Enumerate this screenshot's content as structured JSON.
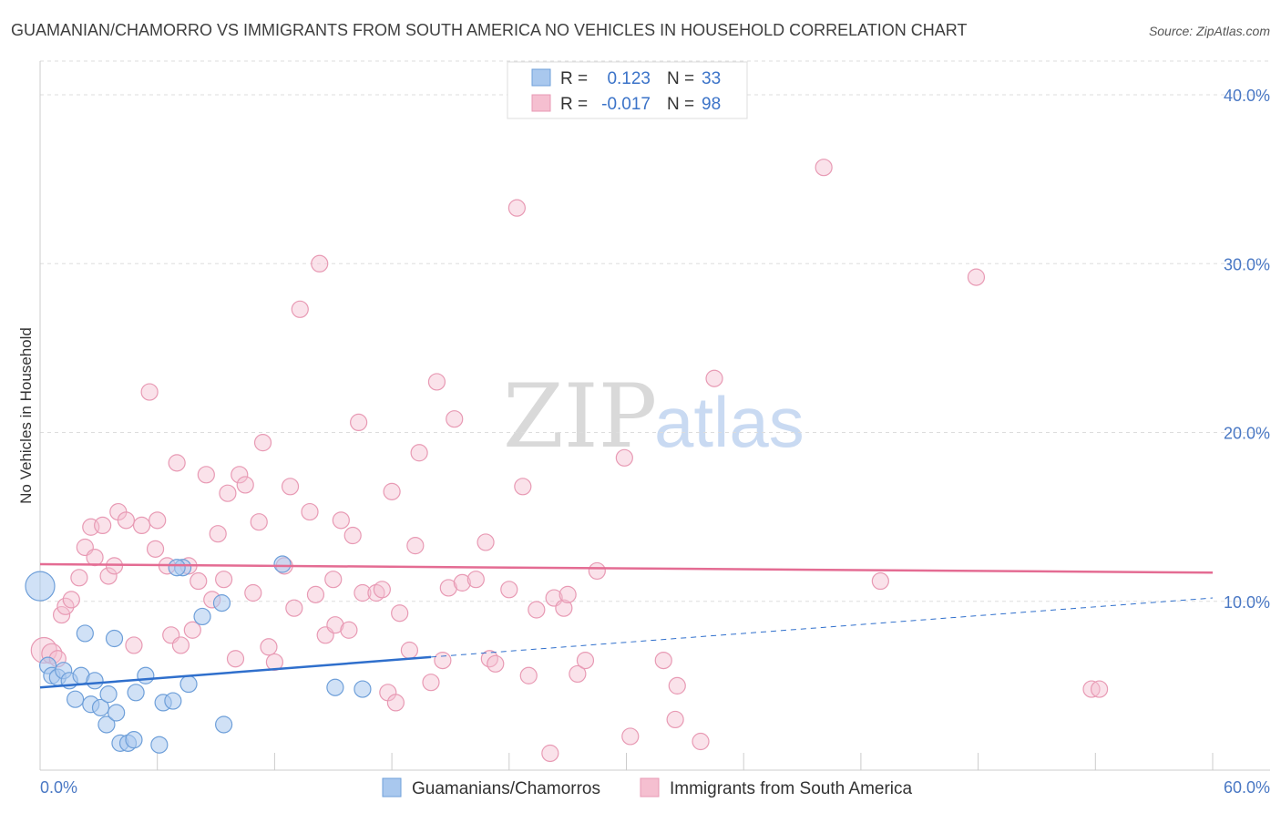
{
  "header": {
    "title": "GUAMANIAN/CHAMORRO VS IMMIGRANTS FROM SOUTH AMERICA NO VEHICLES IN HOUSEHOLD CORRELATION CHART",
    "source": "Source: ZipAtlas.com"
  },
  "watermark": {
    "zip": "ZIP",
    "atlas": "atlas"
  },
  "legend": {
    "rows": [
      {
        "r_label": "R =",
        "r_value": "0.123",
        "n_label": "N =",
        "n_value": "33"
      },
      {
        "r_label": "R =",
        "r_value": "-0.017",
        "n_label": "N =",
        "n_value": "98"
      }
    ]
  },
  "bottom_legend": {
    "series_blue": "Guamanians/Chamorros",
    "series_pink": "Immigrants from South America"
  },
  "colors": {
    "blue_fill": "#a9c8ee",
    "blue_stroke": "#6e9fd9",
    "blue_line": "#2f6fcc",
    "pink_fill": "#f5bfd0",
    "pink_stroke": "#e89ab4",
    "pink_line": "#e46c93",
    "grid": "#dddddd",
    "axis_text": "#4a78c4"
  },
  "chart_data": {
    "type": "scatter",
    "title": "GUAMANIAN/CHAMORRO VS IMMIGRANTS FROM SOUTH AMERICA NO VEHICLES IN HOUSEHOLD CORRELATION CHART",
    "xlabel": "",
    "ylabel": "No Vehicles in Household",
    "xlim": [
      0,
      60
    ],
    "ylim": [
      0,
      42
    ],
    "x_tick_labels": [
      "0.0%",
      "60.0%"
    ],
    "y_ticks": [
      10,
      20,
      30,
      40
    ],
    "y_tick_labels": [
      "10.0%",
      "20.0%",
      "30.0%",
      "40.0%"
    ],
    "series": [
      {
        "name": "Guamanians/Chamorros",
        "color": "#a9c8ee",
        "trend": {
          "x": [
            0,
            20
          ],
          "y": [
            4.9,
            6.7
          ],
          "dashed_to": [
            60,
            10.2
          ]
        },
        "points": [
          {
            "x": 0.0,
            "y": 10.9,
            "r": 16
          },
          {
            "x": 0.4,
            "y": 6.2,
            "r": 9
          },
          {
            "x": 0.6,
            "y": 5.6,
            "r": 9
          },
          {
            "x": 0.9,
            "y": 5.5,
            "r": 9
          },
          {
            "x": 1.2,
            "y": 5.9,
            "r": 9
          },
          {
            "x": 1.5,
            "y": 5.3,
            "r": 9
          },
          {
            "x": 1.8,
            "y": 4.2,
            "r": 9
          },
          {
            "x": 2.1,
            "y": 5.6,
            "r": 9
          },
          {
            "x": 2.3,
            "y": 8.1,
            "r": 9
          },
          {
            "x": 2.6,
            "y": 3.9,
            "r": 9
          },
          {
            "x": 2.8,
            "y": 5.3,
            "r": 9
          },
          {
            "x": 3.1,
            "y": 3.7,
            "r": 9
          },
          {
            "x": 3.4,
            "y": 2.7,
            "r": 9
          },
          {
            "x": 3.5,
            "y": 4.5,
            "r": 9
          },
          {
            "x": 3.8,
            "y": 7.8,
            "r": 9
          },
          {
            "x": 3.9,
            "y": 3.4,
            "r": 9
          },
          {
            "x": 4.1,
            "y": 1.6,
            "r": 9
          },
          {
            "x": 4.5,
            "y": 1.6,
            "r": 9
          },
          {
            "x": 4.8,
            "y": 1.8,
            "r": 9
          },
          {
            "x": 4.9,
            "y": 4.6,
            "r": 9
          },
          {
            "x": 5.4,
            "y": 5.6,
            "r": 9
          },
          {
            "x": 6.1,
            "y": 1.5,
            "r": 9
          },
          {
            "x": 6.3,
            "y": 4.0,
            "r": 9
          },
          {
            "x": 6.8,
            "y": 4.1,
            "r": 9
          },
          {
            "x": 7.3,
            "y": 12.0,
            "r": 9
          },
          {
            "x": 7.6,
            "y": 5.1,
            "r": 9
          },
          {
            "x": 8.3,
            "y": 9.1,
            "r": 9
          },
          {
            "x": 9.3,
            "y": 9.9,
            "r": 9
          },
          {
            "x": 9.4,
            "y": 2.7,
            "r": 9
          },
          {
            "x": 12.4,
            "y": 12.2,
            "r": 9
          },
          {
            "x": 15.1,
            "y": 4.9,
            "r": 9
          },
          {
            "x": 16.5,
            "y": 4.8,
            "r": 9
          },
          {
            "x": 7.0,
            "y": 12.0,
            "r": 9
          }
        ]
      },
      {
        "name": "Immigrants from South America",
        "color": "#f5bfd0",
        "trend": {
          "x": [
            0,
            60
          ],
          "y": [
            12.2,
            11.7
          ]
        },
        "points": [
          {
            "x": 0.2,
            "y": 7.1,
            "r": 14
          },
          {
            "x": 0.6,
            "y": 6.9,
            "r": 11
          },
          {
            "x": 0.9,
            "y": 6.6,
            "r": 9
          },
          {
            "x": 1.1,
            "y": 9.2,
            "r": 9
          },
          {
            "x": 1.3,
            "y": 9.7,
            "r": 9
          },
          {
            "x": 1.6,
            "y": 10.1,
            "r": 9
          },
          {
            "x": 2.0,
            "y": 11.4,
            "r": 9
          },
          {
            "x": 2.3,
            "y": 13.2,
            "r": 9
          },
          {
            "x": 2.6,
            "y": 14.4,
            "r": 9
          },
          {
            "x": 2.8,
            "y": 12.6,
            "r": 9
          },
          {
            "x": 3.2,
            "y": 14.5,
            "r": 9
          },
          {
            "x": 3.5,
            "y": 11.5,
            "r": 9
          },
          {
            "x": 3.8,
            "y": 12.1,
            "r": 9
          },
          {
            "x": 4.0,
            "y": 15.3,
            "r": 9
          },
          {
            "x": 4.4,
            "y": 14.8,
            "r": 9
          },
          {
            "x": 4.8,
            "y": 7.4,
            "r": 9
          },
          {
            "x": 5.2,
            "y": 14.5,
            "r": 9
          },
          {
            "x": 5.6,
            "y": 22.4,
            "r": 9
          },
          {
            "x": 5.9,
            "y": 13.1,
            "r": 9
          },
          {
            "x": 6.0,
            "y": 14.8,
            "r": 9
          },
          {
            "x": 6.5,
            "y": 12.1,
            "r": 9
          },
          {
            "x": 6.7,
            "y": 8.0,
            "r": 9
          },
          {
            "x": 7.0,
            "y": 18.2,
            "r": 9
          },
          {
            "x": 7.2,
            "y": 7.4,
            "r": 9
          },
          {
            "x": 7.6,
            "y": 12.1,
            "r": 9
          },
          {
            "x": 7.8,
            "y": 8.3,
            "r": 9
          },
          {
            "x": 8.1,
            "y": 11.2,
            "r": 9
          },
          {
            "x": 8.5,
            "y": 17.5,
            "r": 9
          },
          {
            "x": 8.8,
            "y": 10.1,
            "r": 9
          },
          {
            "x": 9.1,
            "y": 14.0,
            "r": 9
          },
          {
            "x": 9.4,
            "y": 11.3,
            "r": 9
          },
          {
            "x": 9.6,
            "y": 16.4,
            "r": 9
          },
          {
            "x": 10.0,
            "y": 6.6,
            "r": 9
          },
          {
            "x": 10.2,
            "y": 17.5,
            "r": 9
          },
          {
            "x": 10.5,
            "y": 16.9,
            "r": 9
          },
          {
            "x": 10.9,
            "y": 10.5,
            "r": 9
          },
          {
            "x": 11.2,
            "y": 14.7,
            "r": 9
          },
          {
            "x": 11.4,
            "y": 19.4,
            "r": 9
          },
          {
            "x": 11.7,
            "y": 7.3,
            "r": 9
          },
          {
            "x": 12.0,
            "y": 6.4,
            "r": 9
          },
          {
            "x": 12.5,
            "y": 12.1,
            "r": 9
          },
          {
            "x": 12.8,
            "y": 16.8,
            "r": 9
          },
          {
            "x": 13.0,
            "y": 9.6,
            "r": 9
          },
          {
            "x": 13.3,
            "y": 27.3,
            "r": 9
          },
          {
            "x": 13.8,
            "y": 15.3,
            "r": 9
          },
          {
            "x": 14.1,
            "y": 10.4,
            "r": 9
          },
          {
            "x": 14.3,
            "y": 30.0,
            "r": 9
          },
          {
            "x": 14.6,
            "y": 8.0,
            "r": 9
          },
          {
            "x": 15.0,
            "y": 11.3,
            "r": 9
          },
          {
            "x": 15.1,
            "y": 8.6,
            "r": 9
          },
          {
            "x": 15.4,
            "y": 14.8,
            "r": 9
          },
          {
            "x": 15.8,
            "y": 8.3,
            "r": 9
          },
          {
            "x": 16.0,
            "y": 13.9,
            "r": 9
          },
          {
            "x": 16.3,
            "y": 20.6,
            "r": 9
          },
          {
            "x": 16.5,
            "y": 10.5,
            "r": 9
          },
          {
            "x": 17.2,
            "y": 10.5,
            "r": 9
          },
          {
            "x": 17.5,
            "y": 10.7,
            "r": 9
          },
          {
            "x": 17.8,
            "y": 4.6,
            "r": 9
          },
          {
            "x": 18.0,
            "y": 16.5,
            "r": 9
          },
          {
            "x": 18.2,
            "y": 4.0,
            "r": 9
          },
          {
            "x": 18.4,
            "y": 9.3,
            "r": 9
          },
          {
            "x": 18.9,
            "y": 7.1,
            "r": 9
          },
          {
            "x": 19.2,
            "y": 13.3,
            "r": 9
          },
          {
            "x": 19.4,
            "y": 18.8,
            "r": 9
          },
          {
            "x": 20.0,
            "y": 5.2,
            "r": 9
          },
          {
            "x": 20.3,
            "y": 23.0,
            "r": 9
          },
          {
            "x": 20.6,
            "y": 6.5,
            "r": 9
          },
          {
            "x": 20.9,
            "y": 10.8,
            "r": 9
          },
          {
            "x": 21.2,
            "y": 20.8,
            "r": 9
          },
          {
            "x": 21.6,
            "y": 11.1,
            "r": 9
          },
          {
            "x": 22.3,
            "y": 11.3,
            "r": 9
          },
          {
            "x": 22.8,
            "y": 13.5,
            "r": 9
          },
          {
            "x": 23.0,
            "y": 6.6,
            "r": 9
          },
          {
            "x": 23.3,
            "y": 6.3,
            "r": 9
          },
          {
            "x": 24.0,
            "y": 10.7,
            "r": 9
          },
          {
            "x": 24.4,
            "y": 33.3,
            "r": 9
          },
          {
            "x": 24.7,
            "y": 16.8,
            "r": 9
          },
          {
            "x": 25.0,
            "y": 5.6,
            "r": 9
          },
          {
            "x": 25.4,
            "y": 9.5,
            "r": 9
          },
          {
            "x": 26.1,
            "y": 1.0,
            "r": 9
          },
          {
            "x": 26.3,
            "y": 10.2,
            "r": 9
          },
          {
            "x": 26.8,
            "y": 9.6,
            "r": 9
          },
          {
            "x": 27.0,
            "y": 10.4,
            "r": 9
          },
          {
            "x": 27.5,
            "y": 5.7,
            "r": 9
          },
          {
            "x": 27.9,
            "y": 6.5,
            "r": 9
          },
          {
            "x": 28.5,
            "y": 11.8,
            "r": 9
          },
          {
            "x": 29.9,
            "y": 18.5,
            "r": 9
          },
          {
            "x": 30.2,
            "y": 2.0,
            "r": 9
          },
          {
            "x": 31.9,
            "y": 6.5,
            "r": 9
          },
          {
            "x": 32.5,
            "y": 3.0,
            "r": 9
          },
          {
            "x": 32.6,
            "y": 5.0,
            "r": 9
          },
          {
            "x": 33.8,
            "y": 1.7,
            "r": 9
          },
          {
            "x": 34.5,
            "y": 23.2,
            "r": 9
          },
          {
            "x": 40.1,
            "y": 35.7,
            "r": 9
          },
          {
            "x": 43.0,
            "y": 11.2,
            "r": 9
          },
          {
            "x": 47.9,
            "y": 29.2,
            "r": 9
          },
          {
            "x": 53.8,
            "y": 4.8,
            "r": 9
          },
          {
            "x": 54.2,
            "y": 4.8,
            "r": 9
          }
        ]
      }
    ]
  }
}
